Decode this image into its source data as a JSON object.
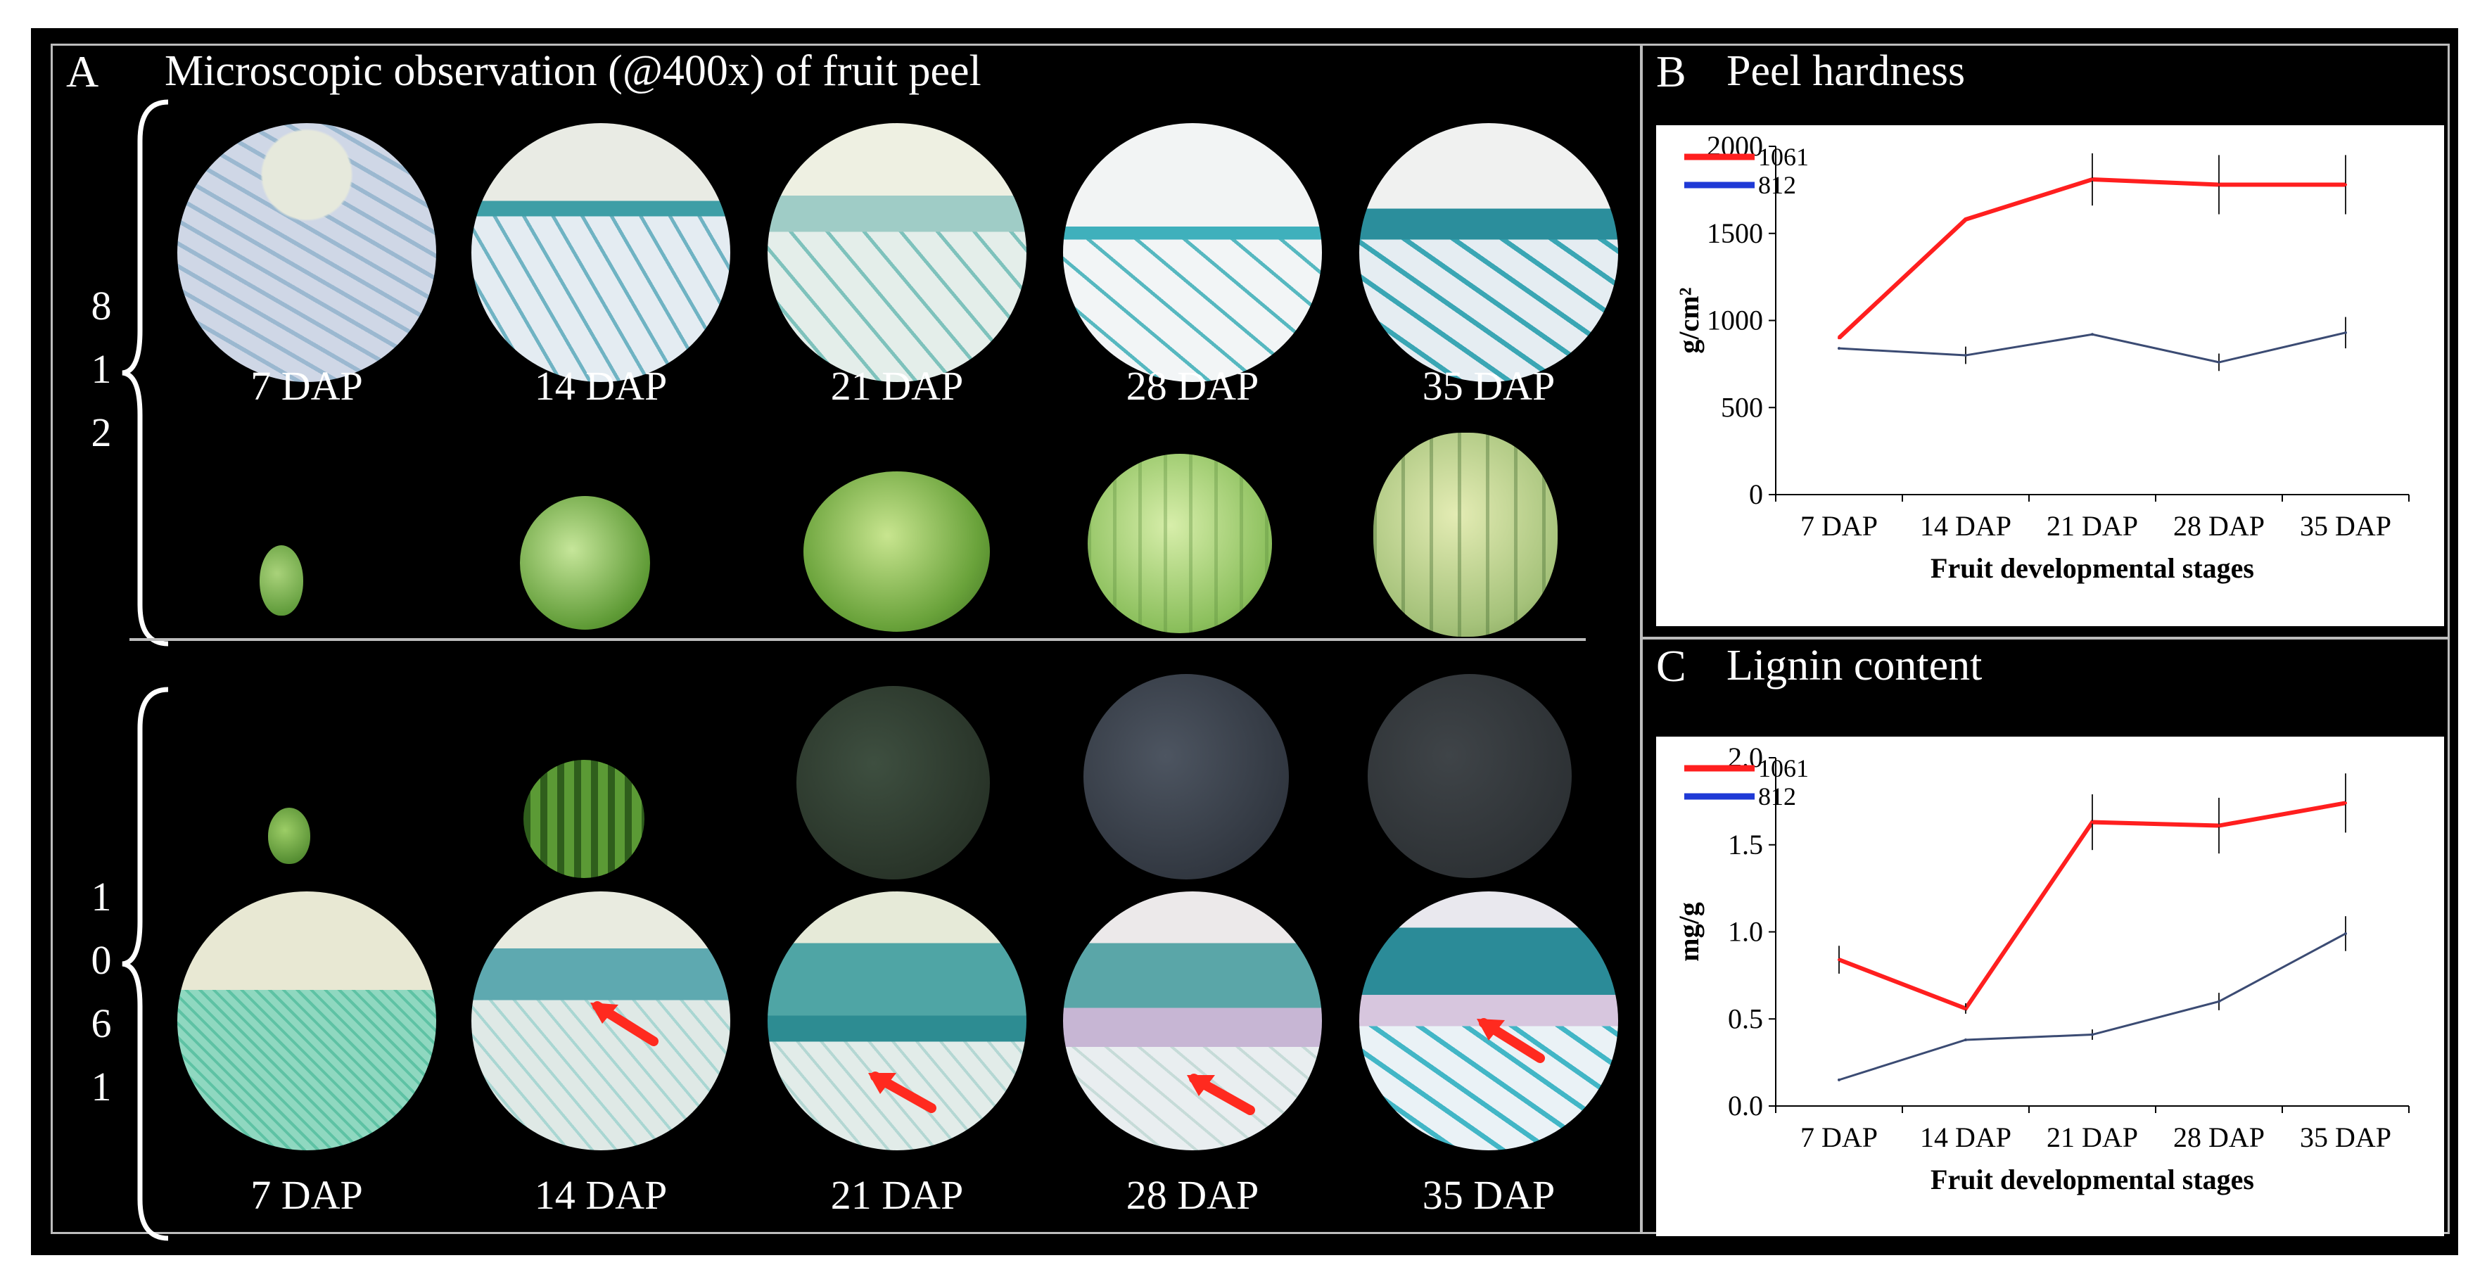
{
  "panelA": {
    "letter": "A",
    "title": "Microscopic observation (@400x) of fruit peel",
    "groups": [
      {
        "name": "812",
        "digits": [
          "8",
          "1",
          "2"
        ]
      },
      {
        "name": "1061",
        "digits": [
          "1",
          "0",
          "6",
          "1"
        ]
      }
    ],
    "stages": [
      "7 DAP",
      "14 DAP",
      "21 DAP",
      "28 DAP",
      "35 DAP"
    ],
    "colors": {
      "stain": "#3fa7a4",
      "cell": "#d9dde2",
      "rind_light": "#8cbf5a",
      "rind_dark": "#2e3438",
      "arrow": "#ff2a1f"
    }
  },
  "panelB": {
    "letter": "B",
    "title": "Peel hardness",
    "chart_data": {
      "type": "line",
      "title": "Peel hardness",
      "xlabel": "Fruit developmental stages",
      "ylabel": "g/cm²",
      "categories": [
        "7 DAP",
        "14 DAP",
        "21 DAP",
        "28 DAP",
        "35 DAP"
      ],
      "ylim": [
        0,
        2000
      ],
      "yticks": [
        "0",
        "500",
        "1000",
        "1500",
        "2000"
      ],
      "series": [
        {
          "name": "1061",
          "color": "#ff1f1f",
          "values": [
            900,
            1580,
            1810,
            1780,
            1780
          ],
          "errors": [
            0,
            0,
            150,
            170,
            170
          ]
        },
        {
          "name": "812",
          "color": "#3b4b73",
          "values": [
            840,
            800,
            920,
            760,
            930
          ],
          "errors": [
            0,
            50,
            0,
            50,
            90
          ]
        }
      ],
      "legend": [
        "1061",
        "812"
      ],
      "legend_colors": [
        "#ff1f1f",
        "#1f3ad6"
      ]
    }
  },
  "panelC": {
    "letter": "C",
    "title": "Lignin content",
    "chart_data": {
      "type": "line",
      "title": "Lignin content",
      "xlabel": "Fruit developmental stages",
      "ylabel": "mg/g",
      "categories": [
        "7 DAP",
        "14 DAP",
        "21 DAP",
        "28 DAP",
        "35 DAP"
      ],
      "ylim": [
        0,
        2.0
      ],
      "yticks": [
        "0.0",
        "0.5",
        "1.0",
        "1.5",
        "2.0"
      ],
      "series": [
        {
          "name": "1061",
          "color": "#ff1f1f",
          "values": [
            0.84,
            0.56,
            1.63,
            1.61,
            1.74
          ],
          "errors": [
            0.08,
            0.03,
            0.16,
            0.16,
            0.17
          ]
        },
        {
          "name": "812",
          "color": "#3b4b73",
          "values": [
            0.15,
            0.38,
            0.41,
            0.6,
            0.99
          ],
          "errors": [
            0,
            0,
            0.03,
            0.05,
            0.1
          ]
        }
      ],
      "legend": [
        "1061",
        "812"
      ],
      "legend_colors": [
        "#ff1f1f",
        "#1f3ad6"
      ]
    }
  }
}
